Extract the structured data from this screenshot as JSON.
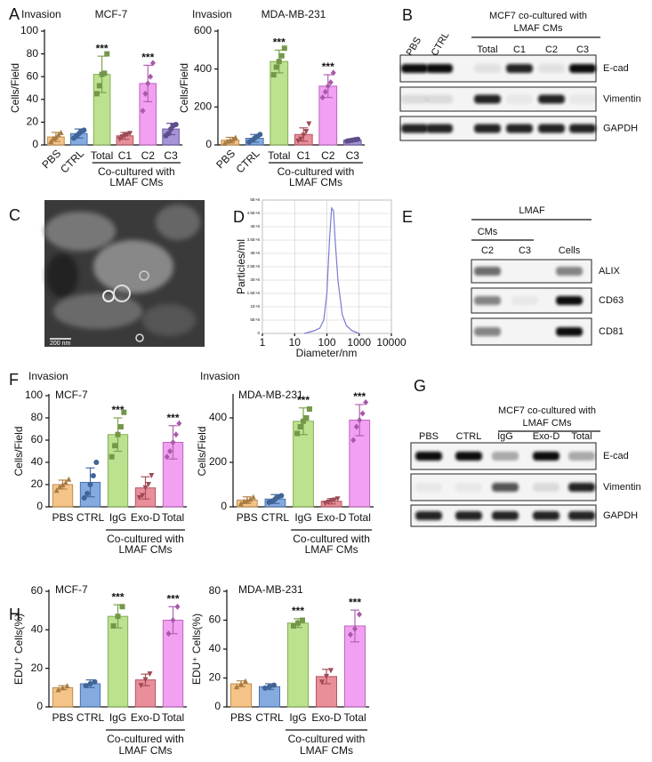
{
  "panel_letters": [
    "A",
    "B",
    "C",
    "D",
    "E",
    "F",
    "G",
    "H"
  ],
  "chart_data": [
    {
      "type": "bar",
      "subtitle": "Invasion",
      "title": "MCF-7",
      "ylabel": "Cells/Field",
      "categories": [
        "PBS",
        "CTRL",
        "Total",
        "C1",
        "C2",
        "C3"
      ],
      "values": [
        7,
        10,
        62,
        8,
        54,
        14
      ],
      "errors": [
        4,
        4,
        16,
        3,
        16,
        5
      ],
      "points": [
        [
          3,
          6,
          7,
          9,
          11
        ],
        [
          6,
          8,
          10,
          12,
          13
        ],
        [
          45,
          52,
          62,
          63,
          80
        ],
        [
          5,
          7,
          8,
          9,
          10
        ],
        [
          30,
          45,
          54,
          60,
          72
        ],
        [
          8,
          10,
          14,
          17,
          18
        ]
      ],
      "colors": [
        "#f0b060",
        "#5b8fd6",
        "#a6d86a",
        "#e06a78",
        "#ee80ee",
        "#8870c8"
      ],
      "significance": [
        null,
        null,
        "***",
        null,
        "***",
        null
      ],
      "group_label": [
        "Co-cultured with",
        "LMAF CMs"
      ],
      "ylim": [
        0,
        100
      ],
      "yticks": [
        0,
        20,
        40,
        60,
        80,
        100
      ]
    },
    {
      "type": "bar",
      "subtitle": "Invasion",
      "title": "MDA-MB-231",
      "ylabel": "Cells/Field",
      "categories": [
        "PBS",
        "CTRL",
        "Total",
        "C1",
        "C2",
        "C3"
      ],
      "values": [
        25,
        35,
        440,
        55,
        310,
        25
      ],
      "errors": [
        15,
        20,
        60,
        35,
        60,
        8
      ],
      "points": [
        [
          10,
          20,
          25,
          30,
          40
        ],
        [
          15,
          25,
          35,
          45,
          55
        ],
        [
          370,
          410,
          440,
          470,
          510
        ],
        [
          20,
          30,
          50,
          70,
          110
        ],
        [
          250,
          280,
          310,
          330,
          380
        ],
        [
          20,
          22,
          25,
          28,
          30
        ]
      ],
      "colors": [
        "#f0b060",
        "#5b8fd6",
        "#a6d86a",
        "#e06a78",
        "#ee80ee",
        "#8870c8"
      ],
      "significance": [
        null,
        null,
        "***",
        null,
        "***",
        null
      ],
      "group_label": [
        "Co-cultured with",
        "LMAF CMs"
      ],
      "ylim": [
        0,
        600
      ],
      "yticks": [
        0,
        200,
        400,
        600
      ]
    },
    {
      "type": "line",
      "xlabel": "Diameter/nm",
      "ylabel": "Particles/ml",
      "color": "#7b7bd6",
      "log_x": true,
      "grid": true,
      "x": [
        20,
        40,
        60,
        80,
        100,
        120,
        140,
        160,
        180,
        220,
        300,
        400,
        600,
        1000
      ],
      "values": [
        0,
        100000,
        200000,
        500000,
        1500000,
        3500000,
        4700000,
        4600000,
        3500000,
        2000000,
        700000,
        300000,
        100000,
        0
      ],
      "xlim": [
        1,
        10000
      ],
      "xticks": [
        1,
        10,
        100,
        1000,
        10000
      ],
      "ylim": [
        0,
        5000000
      ],
      "yticks": [
        0,
        {
          "value": 500000,
          "label": "5E+5"
        },
        {
          "value": 1000000,
          "label": "1E+6"
        },
        {
          "value": 1500000,
          "label": "1.5E+6"
        },
        {
          "value": 2000000,
          "label": "2E+6"
        },
        {
          "value": 2500000,
          "label": "2.5E+6"
        },
        {
          "value": 3000000,
          "label": "3E+6"
        },
        {
          "value": 3500000,
          "label": "3.5E+6"
        },
        {
          "value": 4000000,
          "label": "4E+6"
        },
        {
          "value": 4500000,
          "label": "4.5E+6"
        },
        {
          "value": 5000000,
          "label": "5E+6"
        }
      ]
    },
    {
      "type": "bar",
      "subtitle": "Invasion",
      "title": "MCF-7",
      "ylabel": "Cells/Field",
      "categories": [
        "PBS",
        "CTRL",
        "IgG",
        "Exo-D",
        "Total"
      ],
      "values": [
        20,
        22,
        65,
        17,
        58
      ],
      "errors": [
        4,
        13,
        15,
        10,
        15
      ],
      "points": [
        [
          15,
          18,
          20,
          22,
          25
        ],
        [
          8,
          12,
          20,
          28,
          40
        ],
        [
          45,
          55,
          65,
          72,
          85
        ],
        [
          8,
          10,
          17,
          20,
          28
        ],
        [
          45,
          50,
          58,
          65,
          75
        ]
      ],
      "colors": [
        "#f0b060",
        "#5b8fd6",
        "#a6d86a",
        "#e06a78",
        "#ee80ee"
      ],
      "significance": [
        null,
        null,
        "***",
        null,
        "***"
      ],
      "group_label": [
        "Co-cultured with",
        "LMAF CMs"
      ],
      "ylim": [
        0,
        100
      ],
      "yticks": [
        0,
        20,
        40,
        60,
        80,
        100
      ]
    },
    {
      "type": "bar",
      "subtitle": "Invasion",
      "title": "MDA-MB-231",
      "ylabel": "Cells/Field",
      "categories": [
        "PBS",
        "CTRL",
        "IgG",
        "Exo-D",
        "Total"
      ],
      "values": [
        30,
        35,
        385,
        25,
        390
      ],
      "errors": [
        15,
        20,
        60,
        12,
        70
      ],
      "points": [
        [
          15,
          25,
          30,
          35,
          45
        ],
        [
          20,
          25,
          35,
          45,
          50
        ],
        [
          330,
          360,
          385,
          400,
          440
        ],
        [
          15,
          20,
          25,
          30,
          35
        ],
        [
          300,
          360,
          390,
          420,
          470
        ]
      ],
      "colors": [
        "#f0b060",
        "#5b8fd6",
        "#a6d86a",
        "#e06a78",
        "#ee80ee"
      ],
      "significance": [
        null,
        null,
        "***",
        null,
        "***"
      ],
      "group_label": [
        "Co-cultured with",
        "LMAF CMs"
      ],
      "ylim": [
        0,
        500
      ],
      "yticks": [
        0,
        200,
        400
      ]
    },
    {
      "type": "bar",
      "title": "MCF-7",
      "ylabel": "EDU⁺ Cells(%)",
      "categories": [
        "PBS",
        "CTRL",
        "IgG",
        "Exo-D",
        "Total"
      ],
      "values": [
        10,
        12,
        47,
        14,
        45
      ],
      "errors": [
        1,
        2,
        6,
        3,
        7
      ],
      "points": [
        [
          9,
          10,
          11
        ],
        [
          11,
          12,
          13
        ],
        [
          42,
          47,
          52
        ],
        [
          11,
          14,
          17
        ],
        [
          38,
          45,
          52
        ]
      ],
      "colors": [
        "#f0b060",
        "#5b8fd6",
        "#a6d86a",
        "#e06a78",
        "#ee80ee"
      ],
      "significance": [
        null,
        null,
        "***",
        null,
        "***"
      ],
      "group_label": [
        "Co-cultured with",
        "LMAF CMs"
      ],
      "ylim": [
        0,
        60
      ],
      "yticks": [
        0,
        20,
        40,
        60
      ]
    },
    {
      "type": "bar",
      "title": "MDA-MB-231",
      "ylabel": "EDU⁺ Cells(%)",
      "categories": [
        "PBS",
        "CTRL",
        "IgG",
        "Exo-D",
        "Total"
      ],
      "values": [
        16,
        14,
        58,
        21,
        56
      ],
      "errors": [
        2,
        2,
        3,
        5,
        11
      ],
      "points": [
        [
          14,
          16,
          18
        ],
        [
          13,
          14,
          15
        ],
        [
          56,
          58,
          60
        ],
        [
          17,
          21,
          25
        ],
        [
          50,
          54,
          64
        ]
      ],
      "colors": [
        "#f0b060",
        "#5b8fd6",
        "#a6d86a",
        "#e06a78",
        "#ee80ee"
      ],
      "significance": [
        null,
        null,
        "***",
        null,
        "***"
      ],
      "group_label": [
        "Co-cultured with",
        "LMAF CMs"
      ],
      "ylim": [
        0,
        80
      ],
      "yticks": [
        0,
        20,
        40,
        60,
        80
      ]
    }
  ],
  "blots": [
    {
      "header": [
        "MCF7 co-cultured with",
        "LMAF CMs"
      ],
      "lanes": [
        "PBS",
        "CTRL",
        "Total",
        "C1",
        "C2",
        "C3"
      ],
      "rows": [
        "E-cad",
        "Vimentin",
        "GAPDH"
      ]
    },
    {
      "header": [
        "LMAF"
      ],
      "subheader": "CMs",
      "lanes": [
        "C2",
        "C3",
        "Cells"
      ],
      "rows": [
        "ALIX",
        "CD63",
        "CD81"
      ]
    },
    {
      "header": [
        "MCF7 co-cultured with",
        "LMAF CMs"
      ],
      "lanes": [
        "PBS",
        "CTRL",
        "IgG",
        "Exo-D",
        "Total"
      ],
      "rows": [
        "E-cad",
        "Vimentin",
        "GAPDH"
      ]
    }
  ],
  "tem_image": {
    "scale_bar": "200 nm"
  }
}
